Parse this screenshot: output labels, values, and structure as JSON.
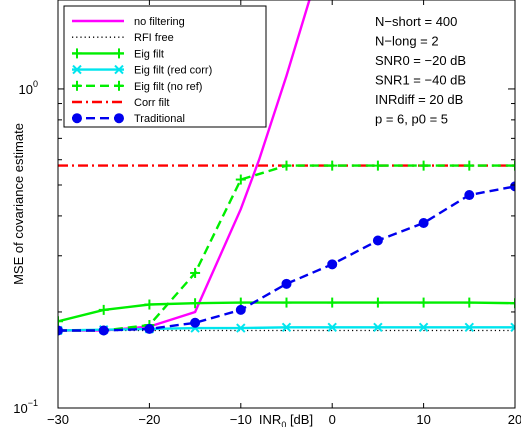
{
  "chart_data": {
    "type": "line",
    "xlabel_main": "INR",
    "xlabel_sub": "0",
    "xlabel_unit": " [dB]",
    "ylabel": "MSE of covariance estimate",
    "x_ticks": [
      -30,
      -20,
      -10,
      0,
      10,
      20
    ],
    "y_ticks": [
      {
        "value": 0.1,
        "base": "10",
        "exp": "−1"
      },
      {
        "value": 1,
        "base": "10",
        "exp": "0"
      }
    ],
    "xlim": [
      -30,
      20
    ],
    "ylim": [
      0.1,
      1.9
    ],
    "y_scale": "log",
    "legend_position": "top-left",
    "annotations": [
      "N−short = 400",
      "N−long  = 2",
      "SNR0 = −20 dB",
      "SNR1 = −40 dB",
      "INRdiff = 20 dB",
      "p = 6, p0 = 5"
    ],
    "series": [
      {
        "name": "no filtering",
        "color": "#ff00ff",
        "dash": "solid",
        "marker": "none",
        "x": [
          -30,
          -25,
          -20,
          -15,
          -10,
          -8,
          -5,
          -2.5
        ],
        "y": [
          0.175,
          0.175,
          0.18,
          0.2,
          0.42,
          0.6,
          1.1,
          1.9
        ]
      },
      {
        "name": "RFI free",
        "color": "#000000",
        "dash": "dotted",
        "marker": "none",
        "x": [
          -30,
          20
        ],
        "y": [
          0.175,
          0.175
        ]
      },
      {
        "name": "Eig filt",
        "color": "#00ee00",
        "dash": "solid",
        "marker": "plus",
        "x": [
          -30,
          -25,
          -20,
          -15,
          -10,
          -5,
          0,
          5,
          10,
          15,
          20
        ],
        "y": [
          0.187,
          0.203,
          0.211,
          0.213,
          0.214,
          0.214,
          0.214,
          0.214,
          0.214,
          0.214,
          0.213
        ]
      },
      {
        "name": "Eig filt (red corr)",
        "color": "#00e5ee",
        "dash": "solid",
        "marker": "x",
        "x": [
          -30,
          -25,
          -20,
          -15,
          -10,
          -5,
          0,
          5,
          10,
          15,
          20
        ],
        "y": [
          0.175,
          0.176,
          0.177,
          0.178,
          0.178,
          0.179,
          0.179,
          0.179,
          0.179,
          0.179,
          0.179
        ]
      },
      {
        "name": "Eig filt (no ref)",
        "color": "#00ee00",
        "dash": "dashed",
        "marker": "plus",
        "x": [
          -30,
          -25,
          -20,
          -15,
          -10,
          -5,
          0,
          5,
          10,
          15,
          20
        ],
        "y": [
          0.175,
          0.175,
          0.182,
          0.265,
          0.52,
          0.575,
          0.575,
          0.575,
          0.575,
          0.575,
          0.575
        ]
      },
      {
        "name": "Corr filt",
        "color": "#ff0000",
        "dash": "dashdot",
        "marker": "none",
        "x": [
          -30,
          -25,
          -20,
          -15,
          -10,
          -5,
          0,
          5,
          10,
          15,
          20
        ],
        "y": [
          0.575,
          0.575,
          0.575,
          0.575,
          0.575,
          0.575,
          0.575,
          0.575,
          0.575,
          0.575,
          0.575
        ]
      },
      {
        "name": "Traditional",
        "color": "#0000ee",
        "dash": "dashed",
        "marker": "circle",
        "x": [
          -30,
          -25,
          -20,
          -15,
          -10,
          -5,
          0,
          5,
          10,
          15,
          20
        ],
        "y": [
          0.175,
          0.175,
          0.177,
          0.185,
          0.203,
          0.245,
          0.282,
          0.335,
          0.38,
          0.465,
          0.495
        ]
      }
    ]
  }
}
